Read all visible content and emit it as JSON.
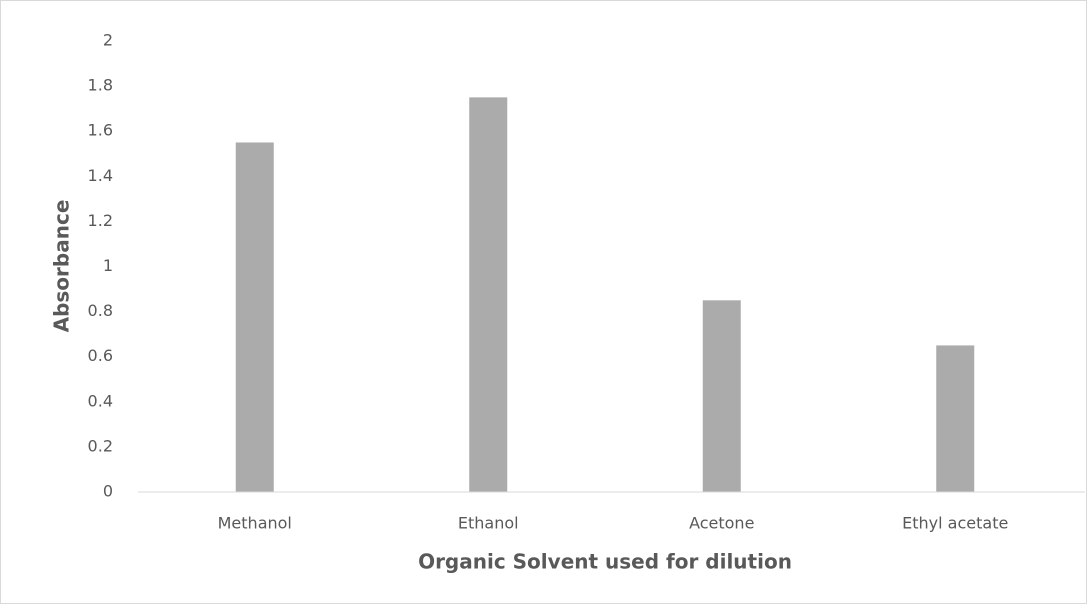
{
  "chart_data": {
    "type": "bar",
    "x_label": "Organic Solvent used for dilution",
    "y_label": "Absorbance",
    "categories": [
      "Methanol",
      "Ethanol",
      "Acetone",
      "Ethyl acetate"
    ],
    "values": [
      1.55,
      1.75,
      0.85,
      0.65
    ],
    "color": "#ababab",
    "ylim": [
      0,
      2
    ],
    "yticks": [
      0,
      0.2,
      0.4,
      0.6,
      0.8,
      1,
      1.2,
      1.4,
      1.6,
      1.8,
      2
    ],
    "grid": false
  }
}
